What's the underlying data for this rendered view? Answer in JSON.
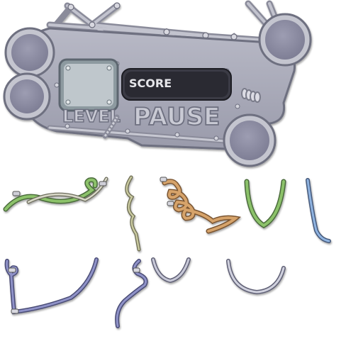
{
  "hud": {
    "score_label": "SCORE",
    "level_label": "LEVEL",
    "pause_label": "PAUSE"
  },
  "colors": {
    "panel": "#a9aab8",
    "panel_dark": "#6e6f80",
    "rim": "#c8c9d3",
    "score_box": "#2a2b32",
    "level_tile": "#bfc7cc",
    "rope_green": "#8cc26a",
    "rope_orange": "#d6a36a",
    "rope_blue": "#8fb3e0",
    "rope_indigo": "#8f92c8",
    "rope_silver": "#c8c9d8",
    "rope_olive": "#c9c9a0"
  },
  "icons": [
    "rope-coil-icon",
    "rope-knot-icon",
    "spring-icon",
    "bolt-icon"
  ]
}
